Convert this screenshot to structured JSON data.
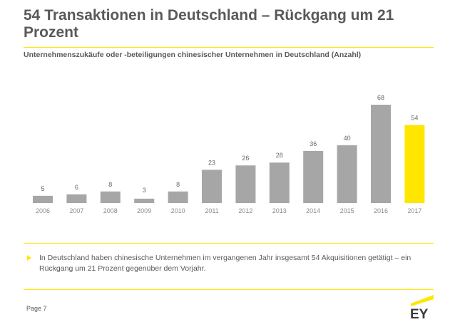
{
  "slide": {
    "title": "54 Transaktionen in Deutschland – Rückgang um 21 Prozent",
    "subtitle": "Unternehmenszukäufe oder -beteiligungen chinesischer Unternehmen in Deutschland (Anzahl)",
    "note": "In Deutschland haben chinesische Unternehmen im vergangenen Jahr insgesamt 54 Akquisitionen getätigt – ein Rückgang um 21 Prozent gegenüber dem Vorjahr.",
    "page_label": "Page 7",
    "logo_text": "EY"
  },
  "chart_data": {
    "type": "bar",
    "title": "Unternehmenszukäufe oder -beteiligungen chinesischer Unternehmen in Deutschland (Anzahl)",
    "categories": [
      "2006",
      "2007",
      "2008",
      "2009",
      "2010",
      "2011",
      "2012",
      "2013",
      "2014",
      "2015",
      "2016",
      "2017"
    ],
    "values": [
      5,
      6,
      8,
      3,
      8,
      23,
      26,
      28,
      36,
      40,
      68,
      54
    ],
    "highlight_index": 11,
    "xlabel": "",
    "ylabel": "",
    "ylim": [
      0,
      68
    ]
  },
  "colors": {
    "bar": "#a6a6a6",
    "highlight": "#ffe600",
    "accent": "#ffe600",
    "text": "#595959"
  }
}
